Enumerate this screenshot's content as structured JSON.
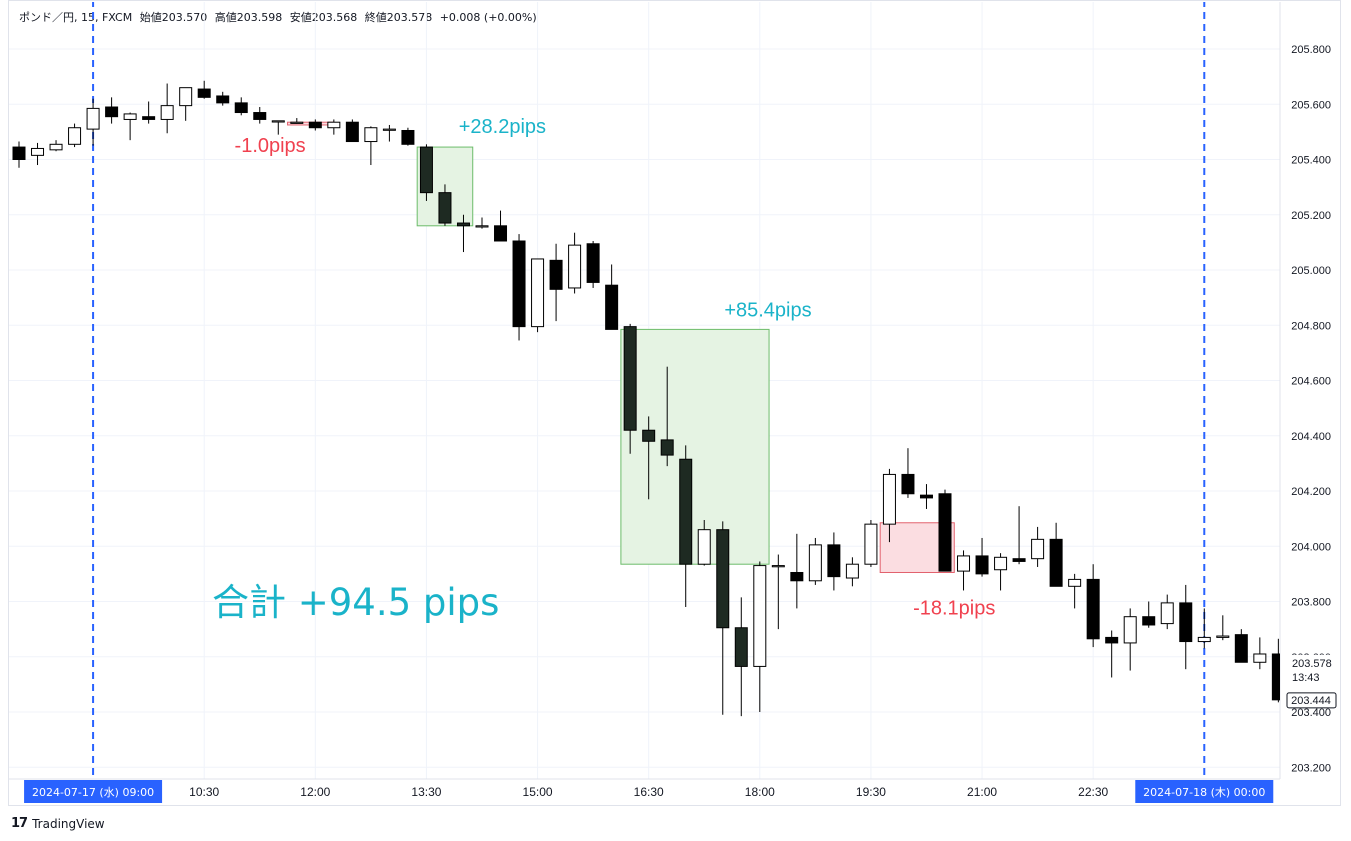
{
  "header": {
    "symbol": "ポンド／円, 15, FXCM",
    "open": "始値203.570",
    "high": "高値203.598",
    "low": "安値203.568",
    "close": "終値203.578",
    "change": "+0.008 (+0.00%)"
  },
  "brand": {
    "logo": "17",
    "name": "TradingView"
  },
  "colors": {
    "up_fill": "#ffffff",
    "down_fill": "#000000",
    "down_fill_alt": "#1e2a22",
    "win_box": "#e5f3e3",
    "win_border": "#6cbc6a",
    "loss_box": "#fbdde1",
    "loss_border": "#e2616e",
    "win_text": "#1ab3c9",
    "loss_text": "#f0414f",
    "marker": "#2962ff",
    "grid": "#f0f3fa"
  },
  "chart_data": {
    "type": "candlestick",
    "timeframe": "15",
    "ylim": [
      203.14,
      205.9
    ],
    "y_ticks": [
      "205.800",
      "205.600",
      "205.400",
      "205.200",
      "205.000",
      "204.800",
      "204.600",
      "204.400",
      "204.200",
      "204.000",
      "203.800",
      "203.600",
      "203.400",
      "203.200"
    ],
    "x_ticks": [
      "10:30",
      "12:00",
      "13:30",
      "15:00",
      "16:30",
      "18:00",
      "19:30",
      "21:00",
      "22:30"
    ],
    "x_tick_index": [
      10,
      16,
      22,
      28,
      34,
      40,
      46,
      52,
      58
    ],
    "date_markers": [
      {
        "index": 4,
        "label": "2024-07-17 (水)   09:00"
      },
      {
        "index": 64,
        "label": "2024-07-18 (木)   00:00"
      }
    ],
    "price_labels": [
      {
        "value": "203.578",
        "sub": "13:43",
        "level": 203.578
      },
      {
        "value": "203.444",
        "level": 203.444
      }
    ],
    "candles": [
      {
        "o": 205.445,
        "h": 205.465,
        "l": 205.37,
        "c": 205.4
      },
      {
        "o": 205.415,
        "h": 205.46,
        "l": 205.38,
        "c": 205.44
      },
      {
        "o": 205.435,
        "h": 205.47,
        "l": 205.43,
        "c": 205.455
      },
      {
        "o": 205.455,
        "h": 205.53,
        "l": 205.445,
        "c": 205.515
      },
      {
        "o": 205.51,
        "h": 205.62,
        "l": 205.45,
        "c": 205.585
      },
      {
        "o": 205.59,
        "h": 205.625,
        "l": 205.53,
        "c": 205.555
      },
      {
        "o": 205.545,
        "h": 205.57,
        "l": 205.47,
        "c": 205.565
      },
      {
        "o": 205.555,
        "h": 205.61,
        "l": 205.53,
        "c": 205.545
      },
      {
        "o": 205.545,
        "h": 205.675,
        "l": 205.495,
        "c": 205.595
      },
      {
        "o": 205.595,
        "h": 205.66,
        "l": 205.54,
        "c": 205.66
      },
      {
        "o": 205.655,
        "h": 205.685,
        "l": 205.62,
        "c": 205.625
      },
      {
        "o": 205.63,
        "h": 205.645,
        "l": 205.595,
        "c": 205.605
      },
      {
        "o": 205.605,
        "h": 205.625,
        "l": 205.56,
        "c": 205.57
      },
      {
        "o": 205.57,
        "h": 205.59,
        "l": 205.53,
        "c": 205.545
      },
      {
        "o": 205.54,
        "h": 205.54,
        "l": 205.49,
        "c": 205.54
      },
      {
        "o": 205.535,
        "h": 205.55,
        "l": 205.53,
        "c": 205.535
      },
      {
        "o": 205.535,
        "h": 205.545,
        "l": 205.505,
        "c": 205.515
      },
      {
        "o": 205.515,
        "h": 205.545,
        "l": 205.49,
        "c": 205.535
      },
      {
        "o": 205.535,
        "h": 205.545,
        "l": 205.465,
        "c": 205.465
      },
      {
        "o": 205.465,
        "h": 205.52,
        "l": 205.38,
        "c": 205.515
      },
      {
        "o": 205.51,
        "h": 205.525,
        "l": 205.465,
        "c": 205.51
      },
      {
        "o": 205.505,
        "h": 205.515,
        "l": 205.45,
        "c": 205.455
      },
      {
        "o": 205.445,
        "h": 205.455,
        "l": 205.25,
        "c": 205.28
      },
      {
        "o": 205.28,
        "h": 205.31,
        "l": 205.16,
        "c": 205.17
      },
      {
        "o": 205.17,
        "h": 205.2,
        "l": 205.065,
        "c": 205.16
      },
      {
        "o": 205.16,
        "h": 205.19,
        "l": 205.15,
        "c": 205.16
      },
      {
        "o": 205.16,
        "h": 205.215,
        "l": 205.11,
        "c": 205.105
      },
      {
        "o": 205.105,
        "h": 205.13,
        "l": 204.745,
        "c": 204.795
      },
      {
        "o": 204.795,
        "h": 205.04,
        "l": 204.775,
        "c": 205.04
      },
      {
        "o": 205.035,
        "h": 205.095,
        "l": 204.815,
        "c": 204.93
      },
      {
        "o": 204.935,
        "h": 205.135,
        "l": 204.915,
        "c": 205.09
      },
      {
        "o": 205.095,
        "h": 205.105,
        "l": 204.935,
        "c": 204.955
      },
      {
        "o": 204.945,
        "h": 205.02,
        "l": 204.785,
        "c": 204.785
      },
      {
        "o": 204.795,
        "h": 204.805,
        "l": 204.335,
        "c": 204.42
      },
      {
        "o": 204.42,
        "h": 204.47,
        "l": 204.17,
        "c": 204.38
      },
      {
        "o": 204.385,
        "h": 204.65,
        "l": 204.29,
        "c": 204.33
      },
      {
        "o": 204.315,
        "h": 204.365,
        "l": 203.78,
        "c": 203.935
      },
      {
        "o": 203.935,
        "h": 204.095,
        "l": 203.93,
        "c": 204.06
      },
      {
        "o": 204.06,
        "h": 204.09,
        "l": 203.39,
        "c": 203.705
      },
      {
        "o": 203.705,
        "h": 203.815,
        "l": 203.385,
        "c": 203.565
      },
      {
        "o": 203.565,
        "h": 203.945,
        "l": 203.4,
        "c": 203.93
      },
      {
        "o": 203.93,
        "h": 203.97,
        "l": 203.7,
        "c": 203.93
      },
      {
        "o": 203.905,
        "h": 204.045,
        "l": 203.775,
        "c": 203.875
      },
      {
        "o": 203.875,
        "h": 204.03,
        "l": 203.86,
        "c": 204.005
      },
      {
        "o": 204.005,
        "h": 204.05,
        "l": 203.84,
        "c": 203.89
      },
      {
        "o": 203.885,
        "h": 203.96,
        "l": 203.855,
        "c": 203.935
      },
      {
        "o": 203.935,
        "h": 204.095,
        "l": 203.925,
        "c": 204.08
      },
      {
        "o": 204.08,
        "h": 204.28,
        "l": 204.015,
        "c": 204.26
      },
      {
        "o": 204.26,
        "h": 204.355,
        "l": 204.175,
        "c": 204.19
      },
      {
        "o": 204.185,
        "h": 204.225,
        "l": 204.135,
        "c": 204.175
      },
      {
        "o": 204.19,
        "h": 204.205,
        "l": 203.91,
        "c": 203.91
      },
      {
        "o": 203.91,
        "h": 203.985,
        "l": 203.84,
        "c": 203.965
      },
      {
        "o": 203.965,
        "h": 204.03,
        "l": 203.89,
        "c": 203.9
      },
      {
        "o": 203.915,
        "h": 203.975,
        "l": 203.84,
        "c": 203.96
      },
      {
        "o": 203.955,
        "h": 204.145,
        "l": 203.935,
        "c": 203.945
      },
      {
        "o": 203.955,
        "h": 204.07,
        "l": 203.925,
        "c": 204.025
      },
      {
        "o": 204.025,
        "h": 204.085,
        "l": 203.86,
        "c": 203.855
      },
      {
        "o": 203.855,
        "h": 203.9,
        "l": 203.775,
        "c": 203.88
      },
      {
        "o": 203.88,
        "h": 203.935,
        "l": 203.635,
        "c": 203.665
      },
      {
        "o": 203.67,
        "h": 203.695,
        "l": 203.525,
        "c": 203.65
      },
      {
        "o": 203.65,
        "h": 203.775,
        "l": 203.55,
        "c": 203.745
      },
      {
        "o": 203.745,
        "h": 203.8,
        "l": 203.705,
        "c": 203.715
      },
      {
        "o": 203.72,
        "h": 203.825,
        "l": 203.7,
        "c": 203.795
      },
      {
        "o": 203.795,
        "h": 203.86,
        "l": 203.555,
        "c": 203.655
      },
      {
        "o": 203.655,
        "h": 203.775,
        "l": 203.63,
        "c": 203.67
      },
      {
        "o": 203.67,
        "h": 203.75,
        "l": 203.66,
        "c": 203.675
      },
      {
        "o": 203.68,
        "h": 203.7,
        "l": 203.585,
        "c": 203.58
      },
      {
        "o": 203.58,
        "h": 203.67,
        "l": 203.555,
        "c": 203.61
      },
      {
        "o": 203.61,
        "h": 203.665,
        "l": 203.435,
        "c": 203.444
      }
    ],
    "trades": [
      {
        "start": 14.5,
        "end": 17.0,
        "top": 205.535,
        "bottom": 205.525,
        "type": "loss",
        "label": "-1.0pips",
        "label_pos": "below-left"
      },
      {
        "start": 21.5,
        "end": 24.5,
        "top": 205.445,
        "bottom": 205.16,
        "type": "win",
        "label": "+28.2pips",
        "label_pos": "above-right"
      },
      {
        "start": 32.5,
        "end": 40.5,
        "top": 204.785,
        "bottom": 203.935,
        "type": "win",
        "label": "+85.4pips",
        "label_pos": "above-center"
      },
      {
        "start": 46.5,
        "end": 50.5,
        "top": 204.085,
        "bottom": 203.905,
        "type": "loss",
        "label": "-18.1pips",
        "label_pos": "below-center"
      }
    ],
    "total_label": "合計 +94.5 pips"
  }
}
